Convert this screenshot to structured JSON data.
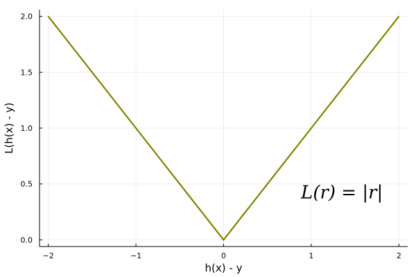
{
  "chart_data": {
    "type": "line",
    "title": "",
    "xlabel": "h(x) - y",
    "ylabel": "L(h(x) - y)",
    "xlim": [
      -2.1,
      2.1
    ],
    "ylim": [
      -0.06,
      2.06
    ],
    "x_ticks": [
      -2,
      -1,
      0,
      1,
      2
    ],
    "x_tick_labels": [
      "−2",
      "−1",
      "0",
      "1",
      "2"
    ],
    "y_ticks": [
      0,
      0.5,
      1,
      1.5,
      2
    ],
    "y_tick_labels": [
      "0.0",
      "0.5",
      "1.0",
      "1.5",
      "2.0"
    ],
    "grid": true,
    "legend": "none",
    "series": [
      {
        "x": [
          -2,
          -1,
          0,
          1,
          2
        ],
        "y": [
          2,
          1,
          0,
          1,
          2
        ],
        "color": "#808000"
      }
    ],
    "annotations": [
      {
        "text": "L(r) = |r|",
        "x": 1.35,
        "y": 0.37
      }
    ]
  }
}
